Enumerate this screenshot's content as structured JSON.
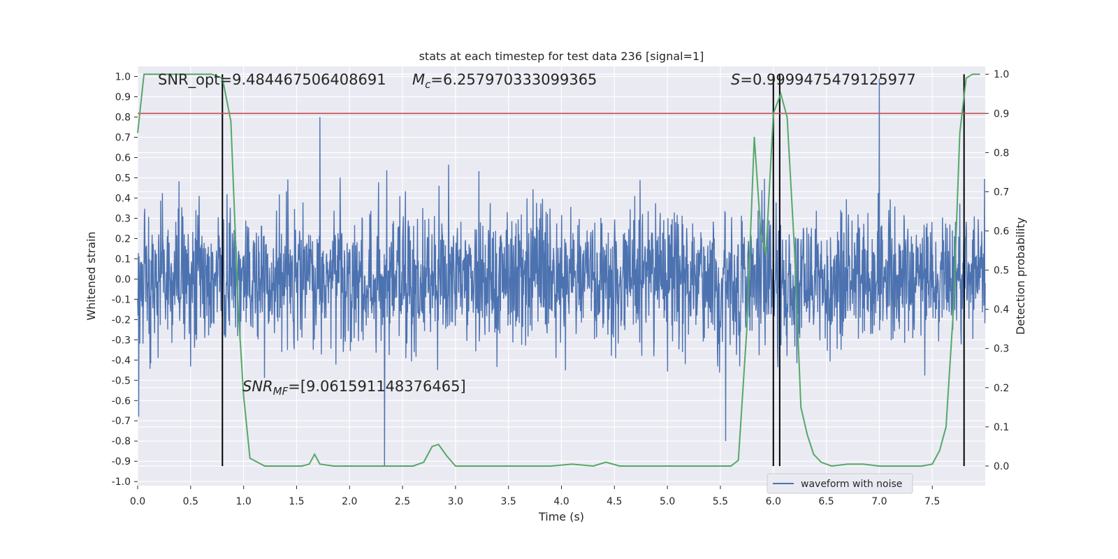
{
  "chart_data": {
    "type": "line",
    "title": "stats at each timestep for test data 236 [signal=1]",
    "xlabel": "Time (s)",
    "ylabel_left": "Whitened strain",
    "ylabel_right": "Detection probability",
    "xlim": [
      0.0,
      8.0
    ],
    "ylim_left": [
      -1.02,
      1.05
    ],
    "ylim_right": [
      -0.05,
      1.02
    ],
    "x_ticks": [
      "0.0",
      "0.5",
      "1.0",
      "1.5",
      "2.0",
      "2.5",
      "3.0",
      "3.5",
      "4.0",
      "4.5",
      "5.0",
      "5.5",
      "6.0",
      "6.5",
      "7.0",
      "7.5"
    ],
    "x_tick_values": [
      0.0,
      0.5,
      1.0,
      1.5,
      2.0,
      2.5,
      3.0,
      3.5,
      4.0,
      4.5,
      5.0,
      5.5,
      6.0,
      6.5,
      7.0,
      7.5
    ],
    "y_left_ticks": [
      "1.0",
      "0.9",
      "0.8",
      "0.7",
      "0.6",
      "0.5",
      "0.4",
      "0.3",
      "0.2",
      "0.1",
      "0.0",
      "-0.1",
      "-0.2",
      "-0.3",
      "-0.4",
      "-0.5",
      "-0.6",
      "-0.7",
      "-0.8",
      "-0.9",
      "-1.0"
    ],
    "y_left_tick_values": [
      1.0,
      0.9,
      0.8,
      0.7,
      0.6,
      0.5,
      0.4,
      0.3,
      0.2,
      0.1,
      0.0,
      -0.1,
      -0.2,
      -0.3,
      -0.4,
      -0.5,
      -0.6,
      -0.7,
      -0.8,
      -0.9,
      -1.0
    ],
    "y_right_ticks": [
      "1.0",
      "0.9",
      "0.8",
      "0.7",
      "0.6",
      "0.5",
      "0.4",
      "0.3",
      "0.2",
      "0.1",
      "0.0"
    ],
    "y_right_tick_values": [
      1.0,
      0.9,
      0.8,
      0.7,
      0.6,
      0.5,
      0.4,
      0.3,
      0.2,
      0.1,
      0.0
    ],
    "grid": true,
    "legend": {
      "placement": "lower-right",
      "entries": [
        "waveform with noise"
      ]
    },
    "waveform": {
      "name": "waveform with noise",
      "color": "#4c72b0",
      "x_range": [
        0.0,
        8.0
      ],
      "typical_amplitude": 0.3,
      "notable_peaks": [
        {
          "x": 0.01,
          "y": 0.71
        },
        {
          "x": 0.01,
          "y": -0.68
        },
        {
          "x": 1.72,
          "y": 0.8
        },
        {
          "x": 2.33,
          "y": -0.92
        },
        {
          "x": 7.0,
          "y": 0.99
        },
        {
          "x": 5.55,
          "y": -0.8
        }
      ]
    },
    "detection_probability": {
      "color": "#55a868",
      "x": [
        0.0,
        0.06,
        0.12,
        0.3,
        0.5,
        0.7,
        0.8,
        0.88,
        0.95,
        1.0,
        1.06,
        1.2,
        1.4,
        1.55,
        1.62,
        1.67,
        1.72,
        1.85,
        2.0,
        2.2,
        2.4,
        2.6,
        2.7,
        2.78,
        2.84,
        2.92,
        3.0,
        3.1,
        3.3,
        3.5,
        3.7,
        3.9,
        4.1,
        4.3,
        4.42,
        4.55,
        4.8,
        5.0,
        5.2,
        5.4,
        5.6,
        5.67,
        5.75,
        5.82,
        5.88,
        5.93,
        6.0,
        6.07,
        6.13,
        6.2,
        6.26,
        6.32,
        6.38,
        6.45,
        6.55,
        6.7,
        6.85,
        7.0,
        7.2,
        7.4,
        7.5,
        7.57,
        7.63,
        7.7,
        7.76,
        7.82,
        7.88,
        7.95
      ],
      "y": [
        0.85,
        1.0,
        1.0,
        1.0,
        1.0,
        1.0,
        0.99,
        0.88,
        0.4,
        0.18,
        0.02,
        0.0,
        0.0,
        0.0,
        0.005,
        0.03,
        0.005,
        0.0,
        0.0,
        0.0,
        0.0,
        0.0,
        0.01,
        0.05,
        0.055,
        0.025,
        0.0,
        0.0,
        0.0,
        0.0,
        0.0,
        0.0,
        0.005,
        0.0,
        0.01,
        0.0,
        0.0,
        0.0,
        0.0,
        0.0,
        0.0,
        0.015,
        0.35,
        0.84,
        0.6,
        0.54,
        0.9,
        0.95,
        0.89,
        0.55,
        0.15,
        0.08,
        0.03,
        0.01,
        0.0,
        0.005,
        0.005,
        0.0,
        0.0,
        0.0,
        0.005,
        0.04,
        0.1,
        0.4,
        0.85,
        0.99,
        1.0,
        1.0
      ]
    },
    "threshold": {
      "color": "#c44e52",
      "y_right": 0.9
    },
    "vertical_markers": [
      0.8,
      6.0,
      6.06,
      7.8
    ],
    "annotations": [
      {
        "text": "SNR_opt=9.484467506408691"
      },
      {
        "text": "M_c=6.257970333099365",
        "display_main": "M",
        "display_sub": "c",
        "display_rest": "=6.257970333099365"
      },
      {
        "text": "S=0.9999475479125977",
        "display_main": "S",
        "display_rest": "=0.9999475479125977"
      },
      {
        "text": "SNR_MF=[9.061591148376465]",
        "display_main": "SNR",
        "display_sub": "MF",
        "display_rest": "=[9.061591148376465]"
      }
    ]
  }
}
